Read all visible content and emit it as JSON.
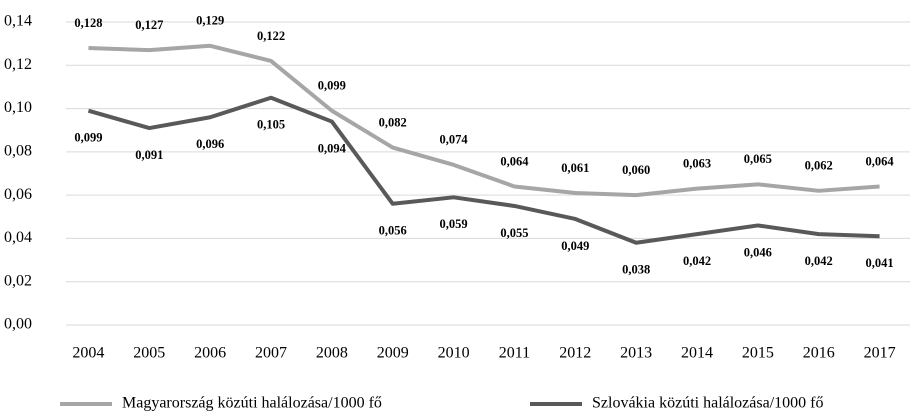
{
  "chart_data": {
    "type": "line",
    "categories": [
      "2004",
      "2005",
      "2006",
      "2007",
      "2008",
      "2009",
      "2010",
      "2011",
      "2012",
      "2013",
      "2014",
      "2015",
      "2016",
      "2017"
    ],
    "series": [
      {
        "name": "Magyarország közúti halálozása/1000 fő",
        "color": "#a6a6a6",
        "values": [
          0.128,
          0.127,
          0.129,
          0.122,
          0.099,
          0.082,
          0.074,
          0.064,
          0.061,
          0.06,
          0.063,
          0.065,
          0.062,
          0.064
        ],
        "value_labels": [
          "0,128",
          "0,127",
          "0,129",
          "0,122",
          "0,099",
          "0,082",
          "0,074",
          "0,064",
          "0,061",
          "0,060",
          "0,063",
          "0,065",
          "0,062",
          "0,064"
        ]
      },
      {
        "name": "Szlovákia közúti halálozása/1000 fő",
        "color": "#595959",
        "values": [
          0.099,
          0.091,
          0.096,
          0.105,
          0.094,
          0.056,
          0.059,
          0.055,
          0.049,
          0.038,
          0.042,
          0.046,
          0.042,
          0.041
        ],
        "value_labels": [
          "0,099",
          "0,091",
          "0,096",
          "0,105",
          "0,094",
          "0,056",
          "0,059",
          "0,055",
          "0,049",
          "0,038",
          "0,042",
          "0,046",
          "0,042",
          "0,041"
        ]
      }
    ],
    "ylim": [
      0,
      0.14
    ],
    "yticks": [
      {
        "value": 0,
        "label": "0,00"
      },
      {
        "value": 0.02,
        "label": "0,02"
      },
      {
        "value": 0.04,
        "label": "0,04"
      },
      {
        "value": 0.06,
        "label": "0,06"
      },
      {
        "value": 0.08,
        "label": "0,08"
      },
      {
        "value": 0.1,
        "label": "0,10"
      },
      {
        "value": 0.12,
        "label": "0,12"
      },
      {
        "value": 0.14,
        "label": "0,14"
      }
    ],
    "grid": true,
    "legend": "bottom"
  }
}
